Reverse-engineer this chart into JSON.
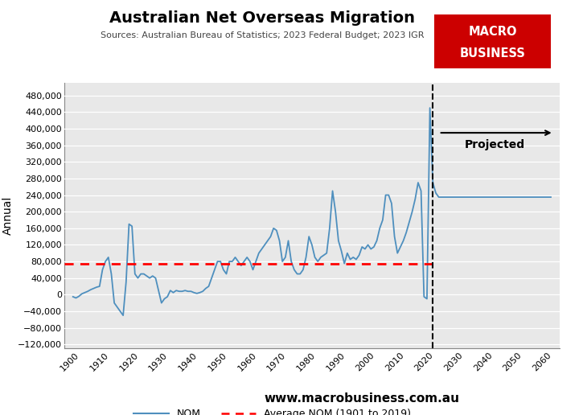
{
  "title": "Australian Net Overseas Migration",
  "subtitle": "Sources: Australian Bureau of Statistics; 2023 Federal Budget; 2023 IGR",
  "ylabel": "Annual",
  "average_nom": 75000,
  "average_nom_label": "Average NOM (1901 to 2019)",
  "projected_label": "Projected",
  "dashed_line_year": 2023,
  "website": "www.macrobusiness.com.au",
  "background_color": "#e8e8e8",
  "line_color": "#4E8FBE",
  "avg_line_color": "#FF0000",
  "logo_bg_color": "#CC0000",
  "historical_years": [
    1901,
    1902,
    1903,
    1904,
    1905,
    1906,
    1907,
    1908,
    1909,
    1910,
    1911,
    1912,
    1913,
    1914,
    1915,
    1916,
    1917,
    1918,
    1919,
    1920,
    1921,
    1922,
    1923,
    1924,
    1925,
    1926,
    1927,
    1928,
    1929,
    1930,
    1931,
    1932,
    1933,
    1934,
    1935,
    1936,
    1937,
    1938,
    1939,
    1940,
    1941,
    1942,
    1943,
    1944,
    1945,
    1946,
    1947,
    1948,
    1949,
    1950,
    1951,
    1952,
    1953,
    1954,
    1955,
    1956,
    1957,
    1958,
    1959,
    1960,
    1961,
    1962,
    1963,
    1964,
    1965,
    1966,
    1967,
    1968,
    1969,
    1970,
    1971,
    1972,
    1973,
    1974,
    1975,
    1976,
    1977,
    1978,
    1979,
    1980,
    1981,
    1982,
    1983,
    1984,
    1985,
    1986,
    1987,
    1988,
    1989,
    1990,
    1991,
    1992,
    1993,
    1994,
    1995,
    1996,
    1997,
    1998,
    1999,
    2000,
    2001,
    2002,
    2003,
    2004,
    2005,
    2006,
    2007,
    2008,
    2009,
    2010,
    2011,
    2012,
    2013,
    2014,
    2015,
    2016,
    2017,
    2018,
    2019,
    2020,
    2021,
    2022,
    2023
  ],
  "historical_values": [
    -5000,
    -8000,
    -4000,
    2000,
    5000,
    8000,
    12000,
    15000,
    18000,
    20000,
    60000,
    80000,
    90000,
    50000,
    -20000,
    -30000,
    -40000,
    -50000,
    30000,
    170000,
    165000,
    50000,
    40000,
    50000,
    50000,
    45000,
    40000,
    45000,
    40000,
    10000,
    -20000,
    -10000,
    -5000,
    10000,
    5000,
    10000,
    8000,
    8000,
    10000,
    8000,
    8000,
    5000,
    3000,
    5000,
    8000,
    15000,
    20000,
    40000,
    60000,
    80000,
    80000,
    60000,
    50000,
    80000,
    80000,
    90000,
    80000,
    70000,
    80000,
    90000,
    80000,
    60000,
    80000,
    100000,
    110000,
    120000,
    130000,
    140000,
    160000,
    155000,
    130000,
    80000,
    90000,
    130000,
    80000,
    60000,
    50000,
    50000,
    60000,
    90000,
    140000,
    120000,
    90000,
    80000,
    90000,
    95000,
    100000,
    160000,
    250000,
    200000,
    130000,
    105000,
    75000,
    100000,
    85000,
    90000,
    85000,
    95000,
    115000,
    110000,
    120000,
    110000,
    115000,
    130000,
    160000,
    180000,
    240000,
    240000,
    220000,
    140000,
    100000,
    115000,
    130000,
    150000,
    175000,
    200000,
    230000,
    270000,
    250000,
    -5000,
    -10000,
    450000,
    270000
  ],
  "projected_years": [
    2023,
    2024,
    2025,
    2026,
    2027,
    2028,
    2029,
    2030,
    2031,
    2032,
    2033,
    2034,
    2035,
    2036,
    2037,
    2038,
    2039,
    2040,
    2041,
    2042,
    2043,
    2044,
    2045,
    2046,
    2047,
    2048,
    2049,
    2050,
    2051,
    2052,
    2053,
    2054,
    2055,
    2056,
    2057,
    2058,
    2059,
    2060,
    2061,
    2062,
    2063
  ],
  "projected_values": [
    270000,
    245000,
    235000,
    235000,
    235000,
    235000,
    235000,
    235000,
    235000,
    235000,
    235000,
    235000,
    235000,
    235000,
    235000,
    235000,
    235000,
    235000,
    235000,
    235000,
    235000,
    235000,
    235000,
    235000,
    235000,
    235000,
    235000,
    235000,
    235000,
    235000,
    235000,
    235000,
    235000,
    235000,
    235000,
    235000,
    235000,
    235000,
    235000,
    235000,
    235000
  ],
  "ylim": [
    -130000,
    510000
  ],
  "xlim": [
    1898,
    2066
  ],
  "yticks": [
    -120000,
    -80000,
    -40000,
    0,
    40000,
    80000,
    120000,
    160000,
    200000,
    240000,
    280000,
    320000,
    360000,
    400000,
    440000,
    480000
  ],
  "xticks": [
    1900,
    1910,
    1920,
    1930,
    1940,
    1950,
    1960,
    1970,
    1980,
    1990,
    2000,
    2010,
    2020,
    2030,
    2040,
    2050,
    2060
  ]
}
